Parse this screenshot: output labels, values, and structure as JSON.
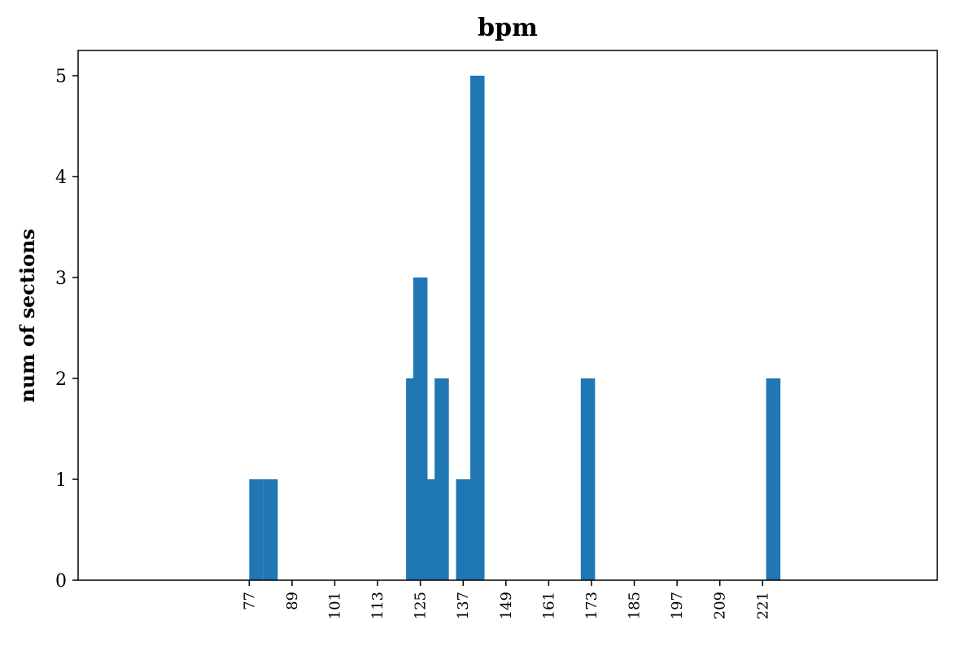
{
  "chart_data": {
    "type": "bar",
    "title": "bpm",
    "xlabel": "",
    "ylabel": "num of sections",
    "bin_width": 4,
    "bins": [
      {
        "x0": 77,
        "count": 1
      },
      {
        "x0": 81,
        "count": 1
      },
      {
        "x0": 121,
        "count": 2
      },
      {
        "x0": 123,
        "count": 3
      },
      {
        "x0": 125,
        "count": 1
      },
      {
        "x0": 127,
        "count": 1
      },
      {
        "x0": 129,
        "count": 2
      },
      {
        "x0": 135,
        "count": 1
      },
      {
        "x0": 137,
        "count": 1
      },
      {
        "x0": 139,
        "count": 5
      },
      {
        "x0": 170,
        "count": 2
      },
      {
        "x0": 222,
        "count": 2
      }
    ],
    "xticks": [
      77,
      89,
      101,
      113,
      125,
      137,
      149,
      161,
      173,
      185,
      197,
      209,
      221
    ],
    "yticks": [
      0,
      1,
      2,
      3,
      4,
      5
    ],
    "xlim": [
      29,
      270
    ],
    "ylim": [
      0,
      5.25
    ],
    "bar_color": "#1f77b4",
    "grid": false
  }
}
